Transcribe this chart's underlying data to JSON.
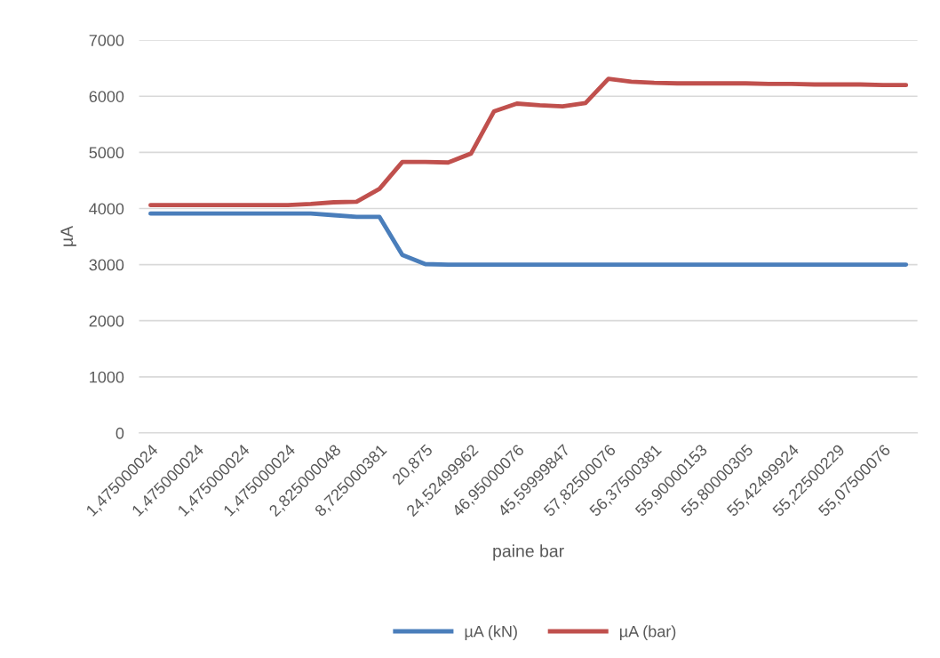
{
  "chart_data": {
    "type": "line",
    "xlabel": "paine bar",
    "ylabel": "µA",
    "categories": [
      "1,475000024",
      null,
      "1,475000024",
      null,
      "1,475000024",
      null,
      "1,475000024",
      null,
      "2,825000048",
      null,
      "8,725000381",
      null,
      "20,875",
      null,
      "24,52499962",
      null,
      "46,95000076",
      null,
      "45,59999847",
      null,
      "57,82500076",
      null,
      "56,37500381",
      null,
      "55,90000153",
      null,
      "55,80000305",
      null,
      "55,42499924",
      null,
      "55,22500229",
      null,
      "55,07500076",
      null
    ],
    "series": [
      {
        "name": "µA (kN)",
        "color": "#4a7ebb",
        "values": [
          3910,
          3910,
          3910,
          3910,
          3910,
          3910,
          3910,
          3910,
          3880,
          3850,
          3850,
          3170,
          3010,
          3000,
          3000,
          3000,
          3000,
          3000,
          3000,
          3000,
          3000,
          3000,
          3000,
          3000,
          3000,
          3000,
          3000,
          3000,
          3000,
          3000,
          3000,
          3000,
          3000,
          3000
        ]
      },
      {
        "name": "µA (bar)",
        "color": "#c0504d",
        "values": [
          4060,
          4060,
          4060,
          4060,
          4060,
          4060,
          4060,
          4080,
          4110,
          4120,
          4350,
          4830,
          4830,
          4820,
          4980,
          5730,
          5870,
          5840,
          5820,
          5880,
          6310,
          6260,
          6240,
          6230,
          6230,
          6230,
          6230,
          6220,
          6220,
          6210,
          6210,
          6210,
          6200,
          6200
        ]
      }
    ],
    "ylim": [
      0,
      7000
    ],
    "yticks": [
      0,
      1000,
      2000,
      3000,
      4000,
      5000,
      6000,
      7000
    ],
    "grid": "y",
    "legend": "bottom",
    "line_style": "solid",
    "marker": "none"
  }
}
